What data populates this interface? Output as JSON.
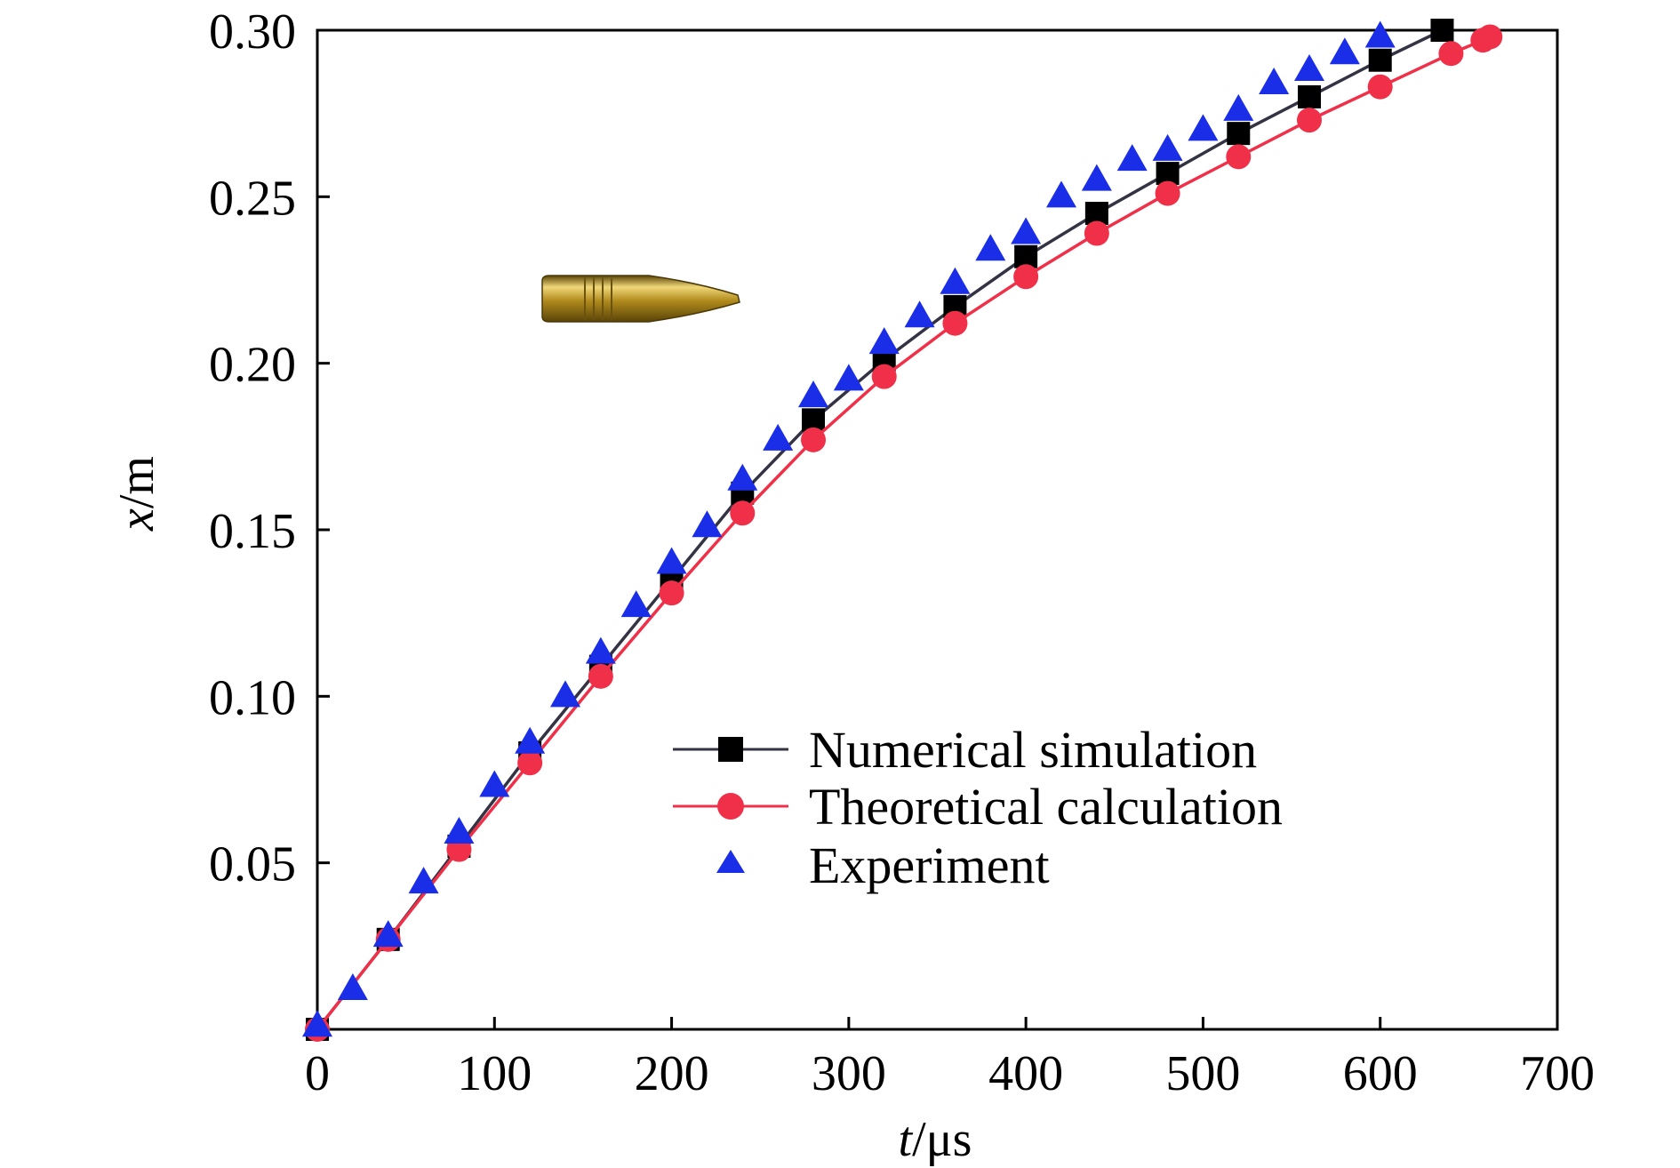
{
  "chart_data": {
    "type": "line",
    "xlabel_var": "t",
    "xlabel_unit": "/μs",
    "ylabel_var": "x",
    "ylabel_unit": "/m",
    "xlim": [
      0,
      700
    ],
    "ylim": [
      0,
      0.3
    ],
    "xticks": [
      0,
      100,
      200,
      300,
      400,
      500,
      600,
      700
    ],
    "xtick_labels": [
      "0",
      "100",
      "200",
      "300",
      "400",
      "500",
      "600",
      "700"
    ],
    "yticks": [
      0.05,
      0.1,
      0.15,
      0.2,
      0.25,
      0.3
    ],
    "ytick_labels": [
      "0.05",
      "0.10",
      "0.15",
      "0.20",
      "0.25",
      "0.30"
    ],
    "grid": false,
    "legend_position": "lower-right",
    "series": [
      {
        "name": "Numerical simulation",
        "marker": "square",
        "line": true,
        "color": "#000000",
        "line_color": "#333344",
        "x": [
          0,
          40,
          80,
          120,
          160,
          200,
          240,
          280,
          320,
          360,
          400,
          440,
          480,
          520,
          560,
          600,
          635
        ],
        "y": [
          0.0,
          0.027,
          0.055,
          0.083,
          0.109,
          0.135,
          0.161,
          0.183,
          0.201,
          0.217,
          0.232,
          0.245,
          0.257,
          0.269,
          0.28,
          0.291,
          0.3
        ]
      },
      {
        "name": "Theoretical calculation",
        "marker": "circle",
        "line": true,
        "color": "#f03048",
        "line_color": "#f03048",
        "x": [
          0,
          40,
          80,
          120,
          160,
          200,
          240,
          280,
          320,
          360,
          400,
          440,
          480,
          520,
          560,
          600,
          640,
          658,
          662
        ],
        "y": [
          0.0,
          0.027,
          0.054,
          0.08,
          0.106,
          0.131,
          0.155,
          0.177,
          0.196,
          0.212,
          0.226,
          0.239,
          0.251,
          0.262,
          0.273,
          0.283,
          0.293,
          0.297,
          0.298
        ]
      },
      {
        "name": "Experiment",
        "marker": "triangle",
        "line": false,
        "color": "#1a2ee8",
        "x": [
          0,
          20,
          40,
          60,
          80,
          100,
          120,
          140,
          160,
          180,
          200,
          220,
          240,
          260,
          280,
          300,
          320,
          340,
          360,
          380,
          400,
          420,
          440,
          460,
          480,
          500,
          520,
          540,
          560,
          580,
          600
        ],
        "y": [
          0.001,
          0.012,
          0.028,
          0.044,
          0.059,
          0.073,
          0.086,
          0.1,
          0.113,
          0.127,
          0.14,
          0.151,
          0.165,
          0.177,
          0.19,
          0.195,
          0.206,
          0.214,
          0.224,
          0.234,
          0.239,
          0.25,
          0.255,
          0.261,
          0.264,
          0.27,
          0.276,
          0.284,
          0.288,
          0.293,
          0.298
        ]
      }
    ]
  },
  "colors": {
    "axis": "#000000",
    "bullet_body": "#b08a1c",
    "bullet_highlight": "#f0d878",
    "bullet_shadow": "#5a4408"
  }
}
